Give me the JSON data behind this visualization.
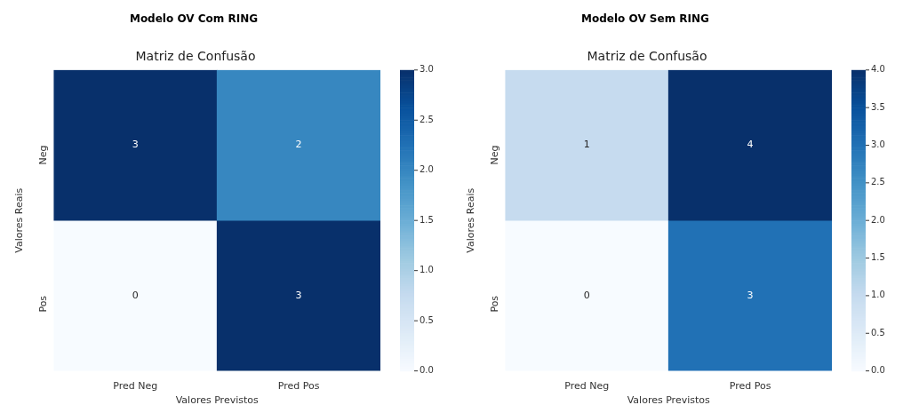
{
  "chart_data": [
    {
      "type": "heatmap",
      "title": "Modelo OV Com RING",
      "subtitle": "Matriz de Confusão",
      "xlabel": "Valores Previstos",
      "ylabel": "Valores Reais",
      "categories": [
        "Pred Neg",
        "Pred Pos"
      ],
      "y_categories": [
        "Neg",
        "Pos"
      ],
      "cells": [
        [
          3,
          2
        ],
        [
          0,
          3
        ]
      ],
      "clim": [
        0,
        3
      ],
      "cticks": [
        {
          "value": 0,
          "label": "0.0"
        },
        {
          "value": 0.5,
          "label": "0.5"
        },
        {
          "value": 1,
          "label": "1.0"
        },
        {
          "value": 1.5,
          "label": "1.5"
        },
        {
          "value": 2,
          "label": "2.0"
        },
        {
          "value": 2.5,
          "label": "2.5"
        },
        {
          "value": 3,
          "label": "3.0"
        }
      ],
      "data_labels": true
    },
    {
      "type": "heatmap",
      "title": "Modelo OV Sem RING",
      "subtitle": "Matriz de Confusão",
      "xlabel": "Valores Previstos",
      "ylabel": "Valores Reais",
      "categories": [
        "Pred Neg",
        "Pred Pos"
      ],
      "y_categories": [
        "Neg",
        "Pos"
      ],
      "cells": [
        [
          1,
          4
        ],
        [
          0,
          3
        ]
      ],
      "clim": [
        0,
        4
      ],
      "cticks": [
        {
          "value": 0,
          "label": "0.0"
        },
        {
          "value": 0.5,
          "label": "0.5"
        },
        {
          "value": 1,
          "label": "1.0"
        },
        {
          "value": 1.5,
          "label": "1.5"
        },
        {
          "value": 2,
          "label": "2.0"
        },
        {
          "value": 2.5,
          "label": "2.5"
        },
        {
          "value": 3,
          "label": "3.0"
        },
        {
          "value": 3.5,
          "label": "3.5"
        },
        {
          "value": 4,
          "label": "4.0"
        }
      ],
      "data_labels": true
    }
  ]
}
